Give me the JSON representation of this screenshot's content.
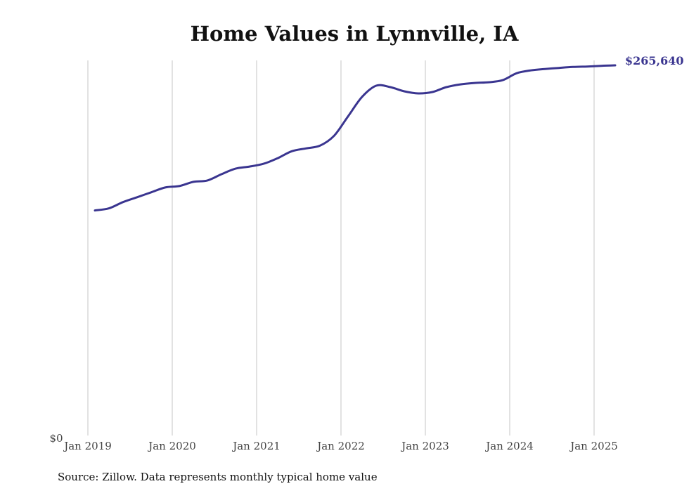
{
  "chart_data": {
    "type": "line",
    "title": "Home Values in Lynnville, IA",
    "xlabel": "",
    "ylabel": "",
    "x_ticks": [
      "Jan 2019",
      "Jan 2020",
      "Jan 2021",
      "Jan 2022",
      "Jan 2023",
      "Jan 2024",
      "Jan 2025"
    ],
    "y_tick_label": "$0",
    "end_value_label": "$265,640",
    "source": "Source: Zillow. Data represents monthly typical home value",
    "ylim": [
      0,
      265640
    ],
    "grid": {
      "vertical": true,
      "horizontal": false
    },
    "line_color": "#3a3590",
    "series": [
      {
        "x": [
          "2019-02",
          "2019-04",
          "2019-06",
          "2019-08",
          "2019-10",
          "2019-12",
          "2020-02",
          "2020-04",
          "2020-06",
          "2020-08",
          "2020-10",
          "2020-12",
          "2021-02",
          "2021-04",
          "2021-06",
          "2021-08",
          "2021-10",
          "2021-12",
          "2022-02",
          "2022-04",
          "2022-06",
          "2022-08",
          "2022-10",
          "2022-12",
          "2023-02",
          "2023-04",
          "2023-06",
          "2023-08",
          "2023-10",
          "2023-12",
          "2024-02",
          "2024-04",
          "2024-06",
          "2024-08",
          "2024-10",
          "2024-12",
          "2025-02",
          "2025-04"
        ],
        "values": [
          161500,
          163000,
          167500,
          171000,
          174500,
          178000,
          179000,
          182000,
          183000,
          187500,
          191500,
          193000,
          195000,
          199000,
          204000,
          206000,
          208000,
          215000,
          229000,
          243000,
          251000,
          250000,
          247000,
          245500,
          246500,
          250000,
          252000,
          253000,
          253500,
          255000,
          260000,
          262000,
          263000,
          263800,
          264500,
          264800,
          265300,
          265640
        ]
      }
    ]
  }
}
